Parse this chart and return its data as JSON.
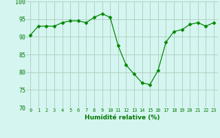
{
  "x": [
    0,
    1,
    2,
    3,
    4,
    5,
    6,
    7,
    8,
    9,
    10,
    11,
    12,
    13,
    14,
    15,
    16,
    17,
    18,
    19,
    20,
    21,
    22,
    23
  ],
  "y": [
    90.5,
    93.0,
    93.0,
    93.0,
    94.0,
    94.5,
    94.5,
    94.0,
    95.5,
    96.5,
    95.5,
    87.5,
    82.0,
    79.5,
    77.0,
    76.5,
    80.5,
    88.5,
    91.5,
    92.0,
    93.5,
    94.0,
    93.0,
    94.0
  ],
  "ylim": [
    70,
    100
  ],
  "yticks": [
    70,
    75,
    80,
    85,
    90,
    95,
    100
  ],
  "xlabel": "Humidité relative (%)",
  "line_color": "#008800",
  "marker": "D",
  "marker_size": 2.5,
  "bg_color": "#d5f5f0",
  "grid_color": "#aaccbb",
  "xlabel_color": "#007700",
  "tick_color": "#007700"
}
